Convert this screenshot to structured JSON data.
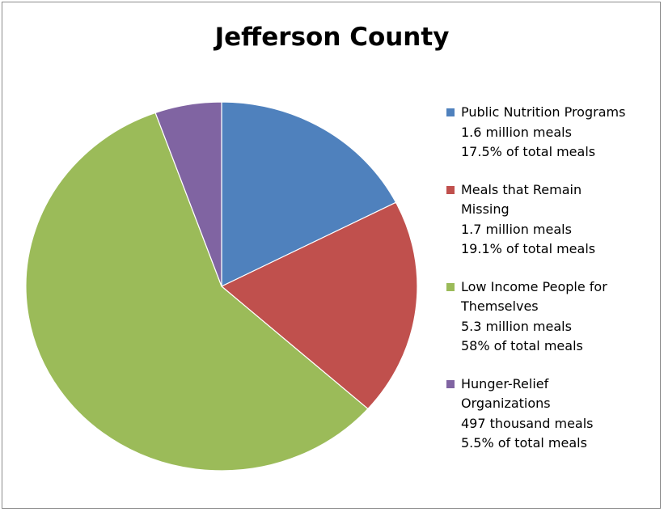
{
  "chart_data": {
    "type": "pie",
    "title": "Jefferson County",
    "legend_position": "right",
    "slices": [
      {
        "label_lines": [
          "Public Nutrition Programs"
        ],
        "amount": "1.6 million meals",
        "share_text": "17.5% of total meals",
        "value": 17.5,
        "color": "#4f81bd"
      },
      {
        "label_lines": [
          "Meals that Remain",
          "Missing"
        ],
        "amount": "1.7 million meals",
        "share_text": "19.1% of total meals",
        "value": 19.1,
        "color": "#c0504d"
      },
      {
        "label_lines": [
          "Low Income People for",
          "Themselves"
        ],
        "amount": "5.3 million meals",
        "share_text": "58% of total meals",
        "value": 58,
        "color": "#9bbb59"
      },
      {
        "label_lines": [
          "Hunger-Relief",
          "Organizations"
        ],
        "amount": "497 thousand meals",
        "share_text": "5.5% of total meals",
        "value": 5.5,
        "color": "#8064a2"
      }
    ]
  }
}
